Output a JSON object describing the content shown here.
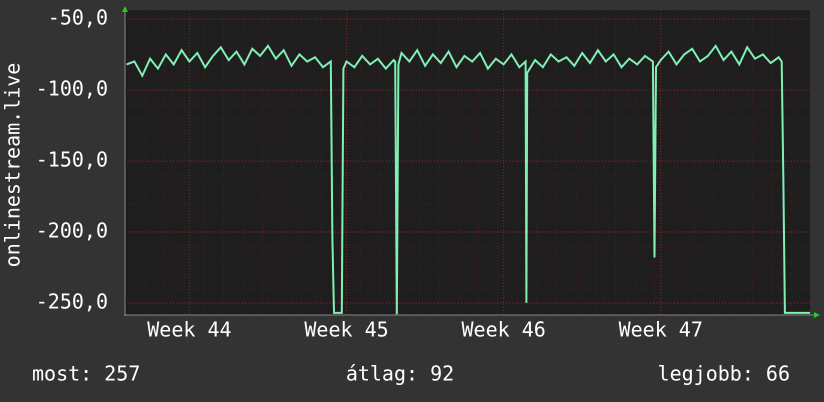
{
  "chart_data": {
    "type": "line",
    "ylabel": "onlinestream.live",
    "xlim": [
      43.59,
      47.95
    ],
    "xticks": [
      {
        "value": 44,
        "label": "Week 44"
      },
      {
        "value": 45,
        "label": "Week 45"
      },
      {
        "value": 46,
        "label": "Week 46"
      },
      {
        "value": 47,
        "label": "Week 47"
      }
    ],
    "ylim": [
      -258.5,
      -43.7
    ],
    "yticks": [
      {
        "value": -50,
        "label": "-50,0"
      },
      {
        "value": -100,
        "label": "-100,0"
      },
      {
        "value": -150,
        "label": "-150,0"
      },
      {
        "value": -200,
        "label": "-200,0"
      },
      {
        "value": -250,
        "label": "-250,0"
      }
    ],
    "grid": true,
    "series": [
      {
        "color": "#7ff0b4",
        "x": [
          43.6,
          43.65,
          43.7,
          43.75,
          43.8,
          43.85,
          43.9,
          43.95,
          44.0,
          44.05,
          44.1,
          44.15,
          44.2,
          44.25,
          44.3,
          44.35,
          44.4,
          44.45,
          44.5,
          44.55,
          44.6,
          44.65,
          44.7,
          44.75,
          44.8,
          44.85,
          44.9,
          44.91,
          44.92,
          44.97,
          44.98,
          45.0,
          45.05,
          45.1,
          45.15,
          45.2,
          45.25,
          45.3,
          45.31,
          45.32,
          45.33,
          45.35,
          45.4,
          45.45,
          45.5,
          45.55,
          45.6,
          45.65,
          45.7,
          45.75,
          45.8,
          45.85,
          45.9,
          45.95,
          46.0,
          46.05,
          46.1,
          46.14,
          46.145,
          46.15,
          46.2,
          46.25,
          46.3,
          46.35,
          46.4,
          46.45,
          46.5,
          46.55,
          46.6,
          46.65,
          46.7,
          46.75,
          46.8,
          46.85,
          46.9,
          46.95,
          46.96,
          46.97,
          47.0,
          47.05,
          47.1,
          47.15,
          47.2,
          47.25,
          47.3,
          47.35,
          47.4,
          47.45,
          47.5,
          47.55,
          47.6,
          47.65,
          47.7,
          47.75,
          47.77,
          47.78,
          47.79,
          47.95
        ],
        "values": [
          -82,
          -80,
          -90,
          -78,
          -85,
          -75,
          -82,
          -72,
          -80,
          -74,
          -84,
          -76,
          -70,
          -79,
          -73,
          -82,
          -71,
          -76,
          -69,
          -78,
          -72,
          -83,
          -75,
          -80,
          -77,
          -84,
          -80,
          -205,
          -257,
          -257,
          -85,
          -80,
          -84,
          -76,
          -82,
          -78,
          -85,
          -79,
          -80,
          -258,
          -82,
          -74,
          -80,
          -72,
          -83,
          -75,
          -81,
          -73,
          -84,
          -76,
          -80,
          -74,
          -85,
          -78,
          -82,
          -75,
          -84,
          -80,
          -250,
          -88,
          -79,
          -84,
          -75,
          -80,
          -77,
          -83,
          -74,
          -81,
          -72,
          -80,
          -75,
          -84,
          -78,
          -82,
          -76,
          -80,
          -218,
          -84,
          -79,
          -73,
          -82,
          -75,
          -71,
          -80,
          -76,
          -69,
          -79,
          -73,
          -82,
          -70,
          -78,
          -75,
          -81,
          -77,
          -80,
          -160,
          -257,
          -257
        ]
      }
    ]
  },
  "footer": [
    "most: 257",
    "átlag: 92",
    "legjobb: 66"
  ]
}
